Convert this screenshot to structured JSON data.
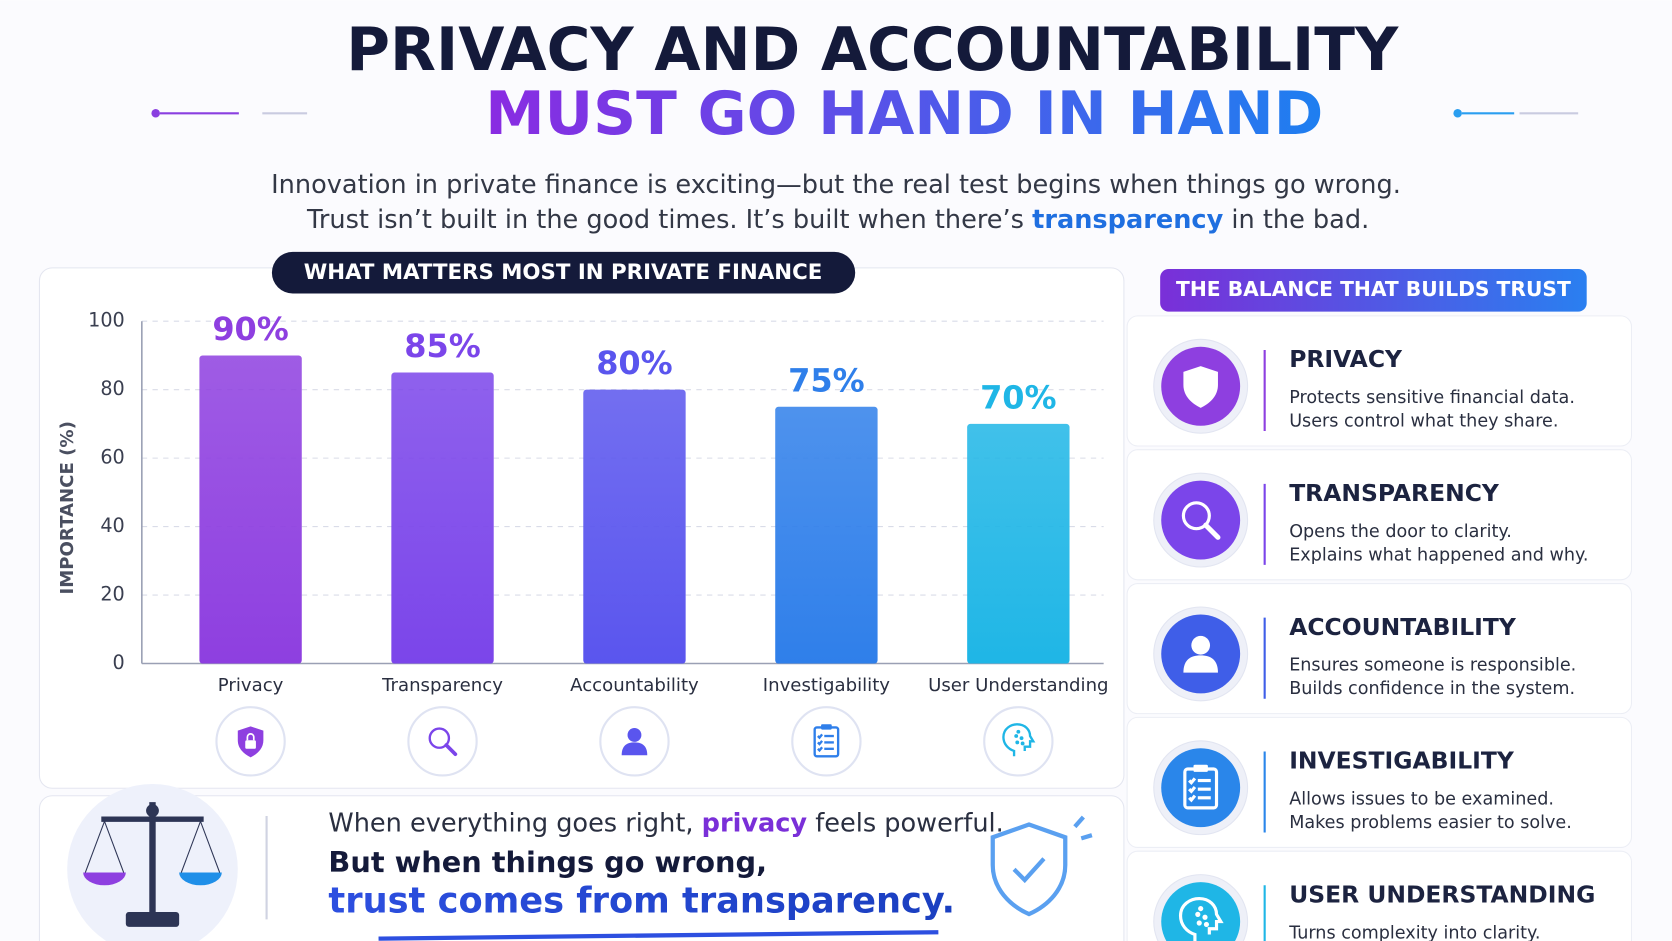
{
  "header": {
    "title_line1": "PRIVACY AND ACCOUNTABILITY",
    "title_line2": "MUST GO HAND IN HAND",
    "intro_line1": "Innovation in private finance is exciting—but the real test begins when things go wrong.",
    "intro_line2_before": "Trust isn’t built in the good times. It’s built when there’s ",
    "intro_line2_highlight": "transparency",
    "intro_line2_after": " in the bad."
  },
  "chart_data": {
    "type": "bar",
    "title": "WHAT MATTERS MOST IN PRIVATE FINANCE",
    "y_label": "IMPORTANCE (%)",
    "categories": [
      "Privacy",
      "Transparency",
      "Accountability",
      "Investigability",
      "User Understanding"
    ],
    "values": [
      90,
      85,
      80,
      75,
      70
    ],
    "value_labels": [
      "90%",
      "85%",
      "80%",
      "75%",
      "70%"
    ],
    "colors": [
      "#8e3fe0",
      "#7b45ea",
      "#5a55ee",
      "#2f7fea",
      "#1fb6e6"
    ],
    "ylim": [
      0,
      100
    ],
    "yticks": [
      0,
      20,
      40,
      60,
      80,
      100
    ],
    "grid": true
  },
  "quote": {
    "line1_before": "When everything goes right, ",
    "line1_highlight": "privacy",
    "line1_after": " feels powerful.",
    "line2": "But when things go wrong,",
    "line3": "trust comes from transparency."
  },
  "balance": {
    "title": "THE BALANCE THAT BUILDS TRUST",
    "items": [
      {
        "name": "PRIVACY",
        "color": "#8e3fe0",
        "lines": [
          "Protects sensitive financial data.",
          "Users control what they share."
        ]
      },
      {
        "name": "TRANSPARENCY",
        "color": "#7b45ea",
        "lines": [
          "Opens the door to clarity.",
          "Explains what happened and why."
        ]
      },
      {
        "name": "ACCOUNTABILITY",
        "color": "#3f5ee8",
        "lines": [
          "Ensures someone is responsible.",
          "Builds confidence in the system."
        ]
      },
      {
        "name": "INVESTIGABILITY",
        "color": "#2a86ea",
        "lines": [
          "Allows issues to be examined.",
          "Makes problems easier to solve."
        ]
      },
      {
        "name": "USER UNDERSTANDING",
        "color": "#1fb6e6",
        "lines": [
          "Turns complexity into clarity."
        ]
      }
    ]
  }
}
